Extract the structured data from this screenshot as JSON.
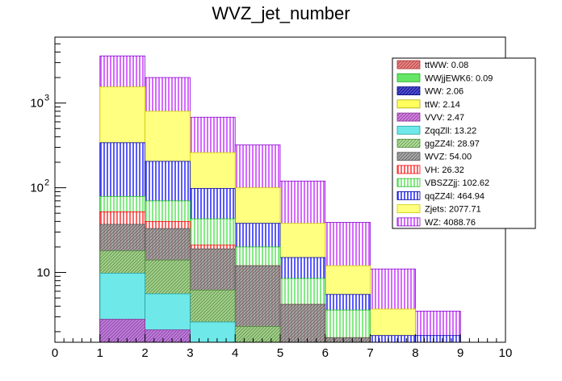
{
  "chart_data": {
    "type": "bar",
    "subtype": "stacked-histogram",
    "title": "WVZ_jet_number",
    "xlabel": "",
    "ylabel": "",
    "xlim": [
      0,
      10
    ],
    "ylim": [
      1.5,
      6000
    ],
    "yscale": "log",
    "x_ticks": [
      0,
      1,
      2,
      3,
      4,
      5,
      6,
      7,
      8,
      9,
      10
    ],
    "y_tick_labels": [
      {
        "value": 10,
        "label": "10",
        "exp": ""
      },
      {
        "value": 100,
        "label": "10",
        "exp": "2"
      },
      {
        "value": 1000,
        "label": "10",
        "exp": "3"
      }
    ],
    "bins": [
      1,
      2,
      3,
      4,
      5,
      6,
      7,
      8
    ],
    "bin_width": 1,
    "stack_order": [
      "WVZ",
      "VH",
      "VBSZZjj",
      "qqZZ4l",
      "Zjets",
      "WZ"
    ],
    "series": [
      {
        "name": "WVZ",
        "legend": "WVZ: 54.00",
        "color": "#9a9a9a",
        "stroke": "#555555",
        "pattern": "diag-dense",
        "segments": [
          {
            "name": "VVV",
            "color": "#c86dd7",
            "stroke": "#8a2e96",
            "pattern": "diag-dense",
            "cum": [
              2.8,
              2.1,
              0,
              0,
              0,
              0,
              0,
              0
            ]
          },
          {
            "name": "ZqqZll",
            "color": "#6ee8e8",
            "stroke": "#2aa0a0",
            "pattern": "solid",
            "cum": [
              9.8,
              5.6,
              2.6,
              0,
              0,
              0,
              0,
              0
            ]
          },
          {
            "name": "ggZZ4l",
            "color": "#a6d98a",
            "stroke": "#4d8a3d",
            "pattern": "diag-dense",
            "cum": [
              18,
              14,
              6.2,
              2.3,
              0,
              0,
              0,
              0
            ]
          }
        ],
        "values": [
          37,
          33,
          19,
          12,
          4.2,
          1.7,
          0,
          0
        ]
      },
      {
        "name": "VH",
        "legend": "VH: 26.32",
        "color": "#ff4040",
        "stroke": "#ff0000",
        "pattern": "vert",
        "values": [
          52,
          40,
          21,
          12,
          4.2,
          1.7,
          0,
          0
        ]
      },
      {
        "name": "VBSZZjj",
        "legend": "VBSZZjj: 102.62",
        "color": "#66e666",
        "stroke": "#22bb22",
        "pattern": "vert",
        "values": [
          79,
          70,
          43,
          20,
          8.5,
          3.6,
          0,
          0
        ]
      },
      {
        "name": "qqZZ4l",
        "legend": "qqZZ4l: 464.94",
        "color": "#3030ff",
        "stroke": "#0000aa",
        "pattern": "vert",
        "values": [
          340,
          205,
          98,
          38,
          15,
          5.5,
          1.8,
          1.8
        ]
      },
      {
        "name": "Zjets",
        "legend": "Zjets: 2077.71",
        "color": "#ffff80",
        "stroke": "#cccc00",
        "pattern": "solid",
        "values": [
          1550,
          800,
          260,
          100,
          38,
          12,
          3.7,
          0
        ]
      },
      {
        "name": "WZ",
        "legend": "WZ: 4088.76",
        "color": "#cc44ff",
        "stroke": "#8800cc",
        "pattern": "vert",
        "values": [
          3600,
          2000,
          680,
          320,
          120,
          39,
          11,
          3.5
        ]
      }
    ],
    "legend": [
      {
        "label": "ttWW: 0.08",
        "color": "#e07070",
        "stroke": "#b03030",
        "pattern": "diag-dense"
      },
      {
        "label": "WWjjEWK6: 0.09",
        "color": "#66e666",
        "stroke": "#22aa22",
        "pattern": "solid"
      },
      {
        "label": "WW: 2.06",
        "color": "#3030c0",
        "stroke": "#000088",
        "pattern": "diag-dense"
      },
      {
        "label": "ttW: 2.14",
        "color": "#ffff60",
        "stroke": "#aaaa00",
        "pattern": "solid"
      },
      {
        "label": "VVV: 2.47",
        "color": "#c86dd7",
        "stroke": "#8a2e96",
        "pattern": "diag-dense"
      },
      {
        "label": "ZqqZll: 13.22",
        "color": "#6ee8e8",
        "stroke": "#2aa0a0",
        "pattern": "solid"
      },
      {
        "label": "ggZZ4l: 28.97",
        "color": "#a6d98a",
        "stroke": "#4d8a3d",
        "pattern": "diag-dense"
      },
      {
        "label": "WVZ: 54.00",
        "color": "#9a9a9a",
        "stroke": "#555555",
        "pattern": "diag-dense"
      },
      {
        "label": "VH: 26.32",
        "color": "#ff4040",
        "stroke": "#ff0000",
        "pattern": "vert"
      },
      {
        "label": "VBSZZjj: 102.62",
        "color": "#66e666",
        "stroke": "#22bb22",
        "pattern": "vert"
      },
      {
        "label": "qqZZ4l: 464.94",
        "color": "#3030ff",
        "stroke": "#0000aa",
        "pattern": "vert"
      },
      {
        "label": "Zjets: 2077.71",
        "color": "#ffff80",
        "stroke": "#cccc00",
        "pattern": "solid"
      },
      {
        "label": "WZ: 4088.76",
        "color": "#cc44ff",
        "stroke": "#8800cc",
        "pattern": "vert"
      }
    ],
    "legend_position": "top-right"
  }
}
